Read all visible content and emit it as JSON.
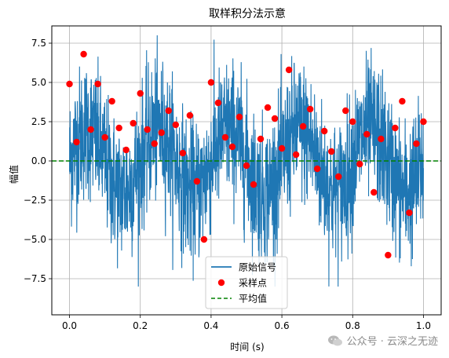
{
  "chart_data": {
    "type": "line",
    "title": "取样积分法示意",
    "xlabel": "时间 (s)",
    "ylabel": "幅值",
    "xlim": [
      -0.05,
      1.05
    ],
    "ylim": [
      -9.8,
      8.6
    ],
    "xticks": [
      0.0,
      0.2,
      0.4,
      0.6,
      0.8,
      1.0
    ],
    "xtick_labels": [
      "0.0",
      "0.2",
      "0.4",
      "0.6",
      "0.8",
      "1.0"
    ],
    "yticks": [
      -7.5,
      -5.0,
      -2.5,
      0.0,
      2.5,
      5.0,
      7.5
    ],
    "ytick_labels": [
      "−7.5",
      "−5.0",
      "−2.5",
      "0.0",
      "2.5",
      "5.0",
      "7.5"
    ],
    "grid": true,
    "legend_position": "lower center",
    "series": [
      {
        "name": "原始信号",
        "style": "line",
        "color": "#1f77b4",
        "x_range": [
          0.0,
          1.0
        ],
        "approx_envelope": [
          -8.0,
          8.0
        ],
        "note": "dense noisy signal, mean ~0, sinusoidal component amplitude ~2"
      },
      {
        "name": "采样点",
        "style": "marker",
        "color": "#ff0000",
        "x": [
          0.0,
          0.02,
          0.04,
          0.06,
          0.08,
          0.1,
          0.12,
          0.14,
          0.16,
          0.18,
          0.2,
          0.22,
          0.24,
          0.26,
          0.28,
          0.3,
          0.32,
          0.34,
          0.36,
          0.38,
          0.4,
          0.42,
          0.44,
          0.46,
          0.48,
          0.5,
          0.52,
          0.54,
          0.56,
          0.58,
          0.6,
          0.62,
          0.64,
          0.66,
          0.68,
          0.7,
          0.72,
          0.74,
          0.76,
          0.78,
          0.8,
          0.82,
          0.84,
          0.86,
          0.88,
          0.9,
          0.92,
          0.94,
          0.96,
          0.98,
          1.0
        ],
        "y": [
          4.9,
          1.2,
          6.8,
          2.0,
          4.9,
          1.5,
          3.8,
          2.1,
          0.7,
          2.4,
          4.3,
          2.0,
          1.1,
          1.8,
          3.2,
          2.3,
          0.5,
          2.9,
          -1.3,
          -5.0,
          5.0,
          3.7,
          1.5,
          0.9,
          2.8,
          -0.3,
          -1.5,
          1.4,
          3.4,
          2.7,
          0.8,
          5.8,
          0.4,
          2.2,
          3.3,
          -0.5,
          1.9,
          0.6,
          -1.0,
          3.2,
          2.5,
          -0.2,
          1.7,
          -2.0,
          1.4,
          -6.0,
          2.1,
          3.8,
          -3.3,
          1.1,
          2.5
        ]
      },
      {
        "name": "平均值",
        "style": "dashed",
        "color": "#008000",
        "y": 0.0
      }
    ]
  },
  "watermark": "公众号 · 云深之无迹"
}
